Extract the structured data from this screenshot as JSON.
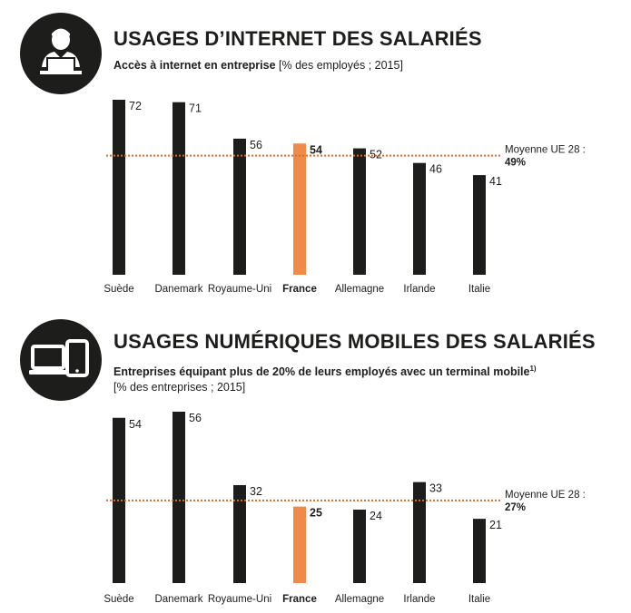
{
  "chart_data": [
    {
      "type": "bar",
      "title": "USAGES D’INTERNET DES SALARIÉS",
      "subtitle_bold": "Accès à internet en entreprise",
      "subtitle_rest": "[% des employés ; 2015]",
      "categories": [
        "Suède",
        "Danemark",
        "Royaume-Uni",
        "France",
        "Allemagne",
        "Irlande",
        "Italie"
      ],
      "values": [
        72,
        71,
        56,
        54,
        52,
        46,
        41
      ],
      "highlight": "France",
      "reference": {
        "label": "Moyenne UE 28 :",
        "value_label": "49%",
        "value": 49
      },
      "ylim": [
        0,
        72
      ],
      "icon": "employee-laptop-icon"
    },
    {
      "type": "bar",
      "title": "USAGES NUMÉRIQUES MOBILES DES SALARIÉS",
      "subtitle_bold": "Entreprises équipant plus de 20% de leurs employés avec un terminal mobile",
      "footnote_mark": "1)",
      "subtitle_line2": "[% des entreprises ; 2015]",
      "categories": [
        "Suède",
        "Danemark",
        "Royaume-Uni",
        "France",
        "Allemagne",
        "Irlande",
        "Italie"
      ],
      "values": [
        54,
        56,
        32,
        25,
        24,
        33,
        21
      ],
      "highlight": "France",
      "reference": {
        "label": "Moyenne UE 28 :",
        "value_label": "27%",
        "value": 27
      },
      "ylim": [
        0,
        56
      ],
      "icon": "laptop-tablet-icon"
    }
  ],
  "colors": {
    "bar": "#1d1d1b",
    "highlight": "#f08a4b",
    "reference": "#e06a2c",
    "text": "#1d1d1b"
  }
}
